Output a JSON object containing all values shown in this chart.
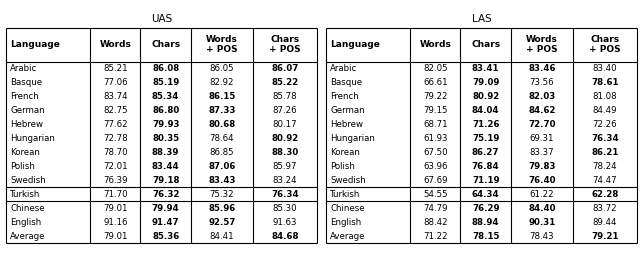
{
  "title_left": "UAS",
  "title_right": "LAS",
  "col_headers": [
    "Language",
    "Words",
    "Chars",
    "Words\n+ POS",
    "Chars\n+ POS"
  ],
  "languages": [
    "Arabic",
    "Basque",
    "French",
    "German",
    "Hebrew",
    "Hungarian",
    "Korean",
    "Polish",
    "Swedish",
    "Turkish",
    "Chinese",
    "English",
    "Average"
  ],
  "uas_data": [
    [
      85.21,
      86.08,
      86.05,
      86.07
    ],
    [
      77.06,
      85.19,
      82.92,
      85.22
    ],
    [
      83.74,
      85.34,
      86.15,
      85.78
    ],
    [
      82.75,
      86.8,
      87.33,
      87.26
    ],
    [
      77.62,
      79.93,
      80.68,
      80.17
    ],
    [
      72.78,
      80.35,
      78.64,
      80.92
    ],
    [
      78.7,
      88.39,
      86.85,
      88.3
    ],
    [
      72.01,
      83.44,
      87.06,
      85.97
    ],
    [
      76.39,
      79.18,
      83.43,
      83.24
    ],
    [
      71.7,
      76.32,
      75.32,
      76.34
    ],
    [
      79.01,
      79.94,
      85.96,
      85.3
    ],
    [
      91.16,
      91.47,
      92.57,
      91.63
    ],
    [
      79.01,
      85.36,
      84.41,
      84.68
    ]
  ],
  "las_data": [
    [
      82.05,
      83.41,
      83.46,
      83.4
    ],
    [
      66.61,
      79.09,
      73.56,
      78.61
    ],
    [
      79.22,
      80.92,
      82.03,
      81.08
    ],
    [
      79.15,
      84.04,
      84.62,
      84.49
    ],
    [
      68.71,
      71.26,
      72.7,
      72.26
    ],
    [
      61.93,
      75.19,
      69.31,
      76.34
    ],
    [
      67.5,
      86.27,
      83.37,
      86.21
    ],
    [
      63.96,
      76.84,
      79.83,
      78.24
    ],
    [
      67.69,
      71.19,
      76.4,
      74.47
    ],
    [
      54.55,
      64.34,
      61.22,
      62.28
    ],
    [
      74.79,
      76.29,
      84.4,
      83.72
    ],
    [
      88.42,
      88.94,
      90.31,
      89.44
    ],
    [
      71.22,
      78.15,
      78.43,
      79.21
    ]
  ],
  "uas_bold": [
    [
      false,
      true,
      false,
      true
    ],
    [
      false,
      true,
      false,
      true
    ],
    [
      false,
      true,
      true,
      false
    ],
    [
      false,
      true,
      true,
      false
    ],
    [
      false,
      true,
      true,
      false
    ],
    [
      false,
      true,
      false,
      true
    ],
    [
      false,
      true,
      false,
      true
    ],
    [
      false,
      true,
      true,
      false
    ],
    [
      false,
      true,
      true,
      false
    ],
    [
      false,
      true,
      false,
      true
    ],
    [
      false,
      true,
      true,
      false
    ],
    [
      false,
      true,
      true,
      false
    ],
    [
      false,
      true,
      false,
      true
    ]
  ],
  "las_bold": [
    [
      false,
      true,
      true,
      false
    ],
    [
      false,
      true,
      false,
      true
    ],
    [
      false,
      true,
      true,
      false
    ],
    [
      false,
      true,
      true,
      false
    ],
    [
      false,
      true,
      true,
      false
    ],
    [
      false,
      true,
      false,
      true
    ],
    [
      false,
      true,
      false,
      true
    ],
    [
      false,
      true,
      true,
      false
    ],
    [
      false,
      true,
      true,
      false
    ],
    [
      false,
      true,
      false,
      true
    ],
    [
      false,
      true,
      true,
      false
    ],
    [
      false,
      true,
      true,
      false
    ],
    [
      false,
      true,
      false,
      true
    ]
  ],
  "separator_after": [
    9,
    10
  ],
  "bg_color": "#ffffff",
  "font_size": 6.2,
  "header_font_size": 6.5,
  "title_fontsize": 7.5
}
